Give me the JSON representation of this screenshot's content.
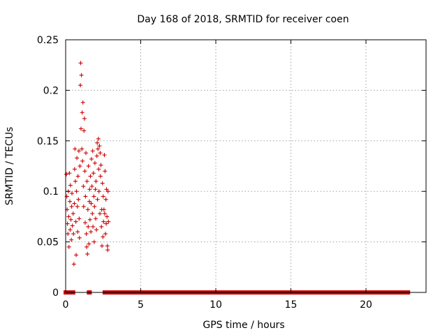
{
  "chart_data": {
    "type": "scatter",
    "title": "Day 168 of 2018, SRMTID for receiver coen",
    "xlabel": "GPS time / hours",
    "ylabel": "SRMTID / TECUs",
    "xlim": [
      0,
      24
    ],
    "ylim": [
      0,
      0.25
    ],
    "x_ticks": [
      "0",
      "5",
      "10",
      "15",
      "20"
    ],
    "y_ticks": [
      "0",
      "0.05",
      "0.1",
      "0.15",
      "0.2",
      "0.25"
    ],
    "grid": true,
    "marker": "plus",
    "color": "#cc0000",
    "series": [
      {
        "points": [
          [
            0.05,
            0.117
          ],
          [
            0.08,
            0.095
          ],
          [
            0.1,
            0.082
          ],
          [
            0.12,
            0.068
          ],
          [
            0.15,
            0.058
          ],
          [
            0.18,
            0.1
          ],
          [
            0.2,
            0.075
          ],
          [
            0.22,
            0.045
          ],
          [
            0.25,
            0.118
          ],
          [
            0.28,
            0.09
          ],
          [
            0.3,
            0.062
          ],
          [
            0.32,
            0.106
          ],
          [
            0.35,
            0.072
          ],
          [
            0.38,
            0.052
          ],
          [
            0.4,
            0.085
          ],
          [
            0.42,
            0.098
          ],
          [
            0.45,
            0.066
          ],
          [
            0.5,
            0.078
          ],
          [
            0.52,
            0.058
          ],
          [
            0.55,
            0.028
          ],
          [
            0.58,
            0.088
          ],
          [
            0.6,
            0.122
          ],
          [
            0.62,
            0.142
          ],
          [
            0.65,
            0.11
          ],
          [
            0.68,
            0.07
          ],
          [
            0.7,
            0.037
          ],
          [
            0.72,
            0.1
          ],
          [
            0.75,
            0.133
          ],
          [
            0.78,
            0.085
          ],
          [
            0.8,
            0.06
          ],
          [
            0.82,
            0.115
          ],
          [
            0.85,
            0.092
          ],
          [
            0.88,
            0.14
          ],
          [
            0.9,
            0.073
          ],
          [
            0.92,
            0.054
          ],
          [
            0.95,
            0.125
          ],
          [
            0.98,
            0.205
          ],
          [
            1.0,
            0.227
          ],
          [
            1.02,
            0.162
          ],
          [
            1.05,
            0.215
          ],
          [
            1.08,
            0.142
          ],
          [
            1.1,
            0.178
          ],
          [
            1.12,
            0.13
          ],
          [
            1.15,
            0.188
          ],
          [
            1.18,
            0.105
          ],
          [
            1.2,
            0.085
          ],
          [
            1.22,
            0.16
          ],
          [
            1.25,
            0.172
          ],
          [
            1.28,
            0.12
          ],
          [
            1.3,
            0.069
          ],
          [
            1.32,
            0.095
          ],
          [
            1.35,
            0.138
          ],
          [
            1.38,
            0.058
          ],
          [
            1.4,
            0.045
          ],
          [
            1.42,
            0.11
          ],
          [
            1.45,
            0.038
          ],
          [
            1.48,
            0.082
          ],
          [
            1.5,
            0.065
          ],
          [
            1.52,
            0.125
          ],
          [
            1.55,
            0.048
          ],
          [
            1.58,
            0.09
          ],
          [
            1.6,
            0.102
          ],
          [
            1.62,
            0.072
          ],
          [
            1.65,
            0.115
          ],
          [
            1.68,
            0.06
          ],
          [
            1.7,
            0.088
          ],
          [
            1.72,
            0.132
          ],
          [
            1.75,
            0.105
          ],
          [
            1.78,
            0.078
          ],
          [
            1.8,
            0.14
          ],
          [
            1.82,
            0.065
          ],
          [
            1.85,
            0.118
          ],
          [
            1.88,
            0.095
          ],
          [
            1.9,
            0.05
          ],
          [
            1.92,
            0.085
          ],
          [
            1.95,
            0.128
          ],
          [
            1.98,
            0.102
          ],
          [
            2.0,
            0.073
          ],
          [
            2.02,
            0.11
          ],
          [
            2.05,
            0.062
          ],
          [
            2.08,
            0.135
          ],
          [
            2.1,
            0.148
          ],
          [
            2.12,
            0.092
          ],
          [
            2.15,
            0.142
          ],
          [
            2.18,
            0.152
          ],
          [
            2.2,
            0.122
          ],
          [
            2.22,
            0.1
          ],
          [
            2.25,
            0.145
          ],
          [
            2.28,
            0.078
          ],
          [
            2.3,
            0.138
          ],
          [
            2.32,
            0.115
          ],
          [
            2.35,
            0.126
          ],
          [
            2.38,
            0.065
          ],
          [
            2.4,
            0.082
          ],
          [
            2.42,
            0.046
          ],
          [
            2.45,
            0.108
          ],
          [
            2.48,
            0.055
          ],
          [
            2.5,
            0.095
          ],
          [
            2.52,
            0.07
          ],
          [
            2.55,
            0.082
          ],
          [
            2.58,
            0.136
          ],
          [
            2.6,
            0.078
          ],
          [
            2.62,
            0.12
          ],
          [
            2.65,
            0.058
          ],
          [
            2.68,
            0.092
          ],
          [
            2.7,
            0.068
          ],
          [
            2.72,
            0.102
          ],
          [
            2.75,
            0.075
          ],
          [
            2.78,
            0.046
          ],
          [
            2.8,
            0.042
          ],
          [
            2.82,
            0.1
          ],
          [
            2.85,
            0.07
          ]
        ],
        "zero_segments": [
          [
            0.0,
            0.5
          ],
          [
            1.55,
            1.6
          ],
          [
            2.6,
            2.9
          ],
          [
            3.0,
            22.8
          ]
        ]
      }
    ]
  }
}
